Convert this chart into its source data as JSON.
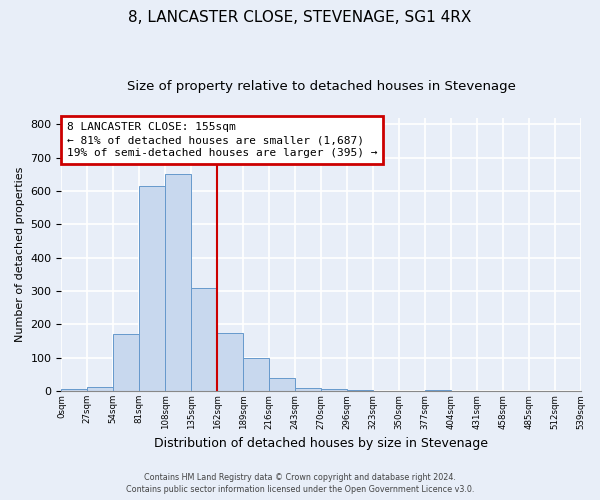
{
  "title": "8, LANCASTER CLOSE, STEVENAGE, SG1 4RX",
  "subtitle": "Size of property relative to detached houses in Stevenage",
  "xlabel": "Distribution of detached houses by size in Stevenage",
  "ylabel": "Number of detached properties",
  "bar_edges": [
    0,
    27,
    54,
    81,
    108,
    135,
    162,
    189,
    216,
    243,
    270,
    297,
    324,
    351,
    378,
    405,
    432,
    459,
    486,
    513,
    540
  ],
  "bar_heights": [
    5,
    12,
    170,
    615,
    650,
    310,
    175,
    98,
    40,
    10,
    5,
    2,
    0,
    0,
    2,
    0,
    0,
    0,
    0,
    0
  ],
  "bar_color": "#c8d8ee",
  "bar_edgecolor": "#6699cc",
  "vline_x": 162,
  "vline_color": "#cc0000",
  "ylim": [
    0,
    820
  ],
  "yticks": [
    0,
    100,
    200,
    300,
    400,
    500,
    600,
    700,
    800
  ],
  "xtick_labels": [
    "0sqm",
    "27sqm",
    "54sqm",
    "81sqm",
    "108sqm",
    "135sqm",
    "162sqm",
    "189sqm",
    "216sqm",
    "243sqm",
    "270sqm",
    "296sqm",
    "323sqm",
    "350sqm",
    "377sqm",
    "404sqm",
    "431sqm",
    "458sqm",
    "485sqm",
    "512sqm",
    "539sqm"
  ],
  "annotation_title": "8 LANCASTER CLOSE: 155sqm",
  "annotation_line1": "← 81% of detached houses are smaller (1,687)",
  "annotation_line2": "19% of semi-detached houses are larger (395) →",
  "annotation_box_color": "#cc0000",
  "footnote1": "Contains HM Land Registry data © Crown copyright and database right 2024.",
  "footnote2": "Contains public sector information licensed under the Open Government Licence v3.0.",
  "bg_color": "#e8eef8",
  "grid_color": "#ffffff",
  "title_fontsize": 11,
  "subtitle_fontsize": 9.5,
  "ylabel_fontsize": 8,
  "xlabel_fontsize": 9
}
